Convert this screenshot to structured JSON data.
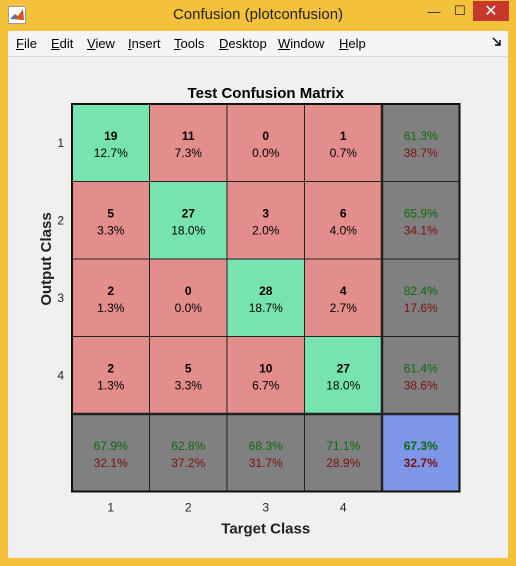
{
  "window": {
    "title": "Confusion (plotconfusion)",
    "minimize_glyph": "—",
    "maximize_glyph": "☐",
    "close_glyph": "✕",
    "app_icon": "matlab-icon"
  },
  "menu": [
    {
      "first": "F",
      "rest": "ile"
    },
    {
      "first": "E",
      "rest": "dit"
    },
    {
      "first": "V",
      "rest": "iew"
    },
    {
      "first": "I",
      "rest": "nsert"
    },
    {
      "first": "T",
      "rest": "ools"
    },
    {
      "first": "D",
      "rest": "esktop"
    },
    {
      "first": "W",
      "rest": "indow"
    },
    {
      "first": "H",
      "rest": "elp"
    }
  ],
  "colors": {
    "correct": "#77e4af",
    "incorrect": "#e38d8d",
    "summary": "#808080",
    "overall": "#7d96e7",
    "pct_good": "#0a6b0a",
    "pct_bad": "#7a1010"
  },
  "chart_data": {
    "type": "heatmap",
    "title": "Test Confusion Matrix",
    "xlabel": "Target Class",
    "ylabel": "Output Class",
    "x_ticks": [
      "1",
      "2",
      "3",
      "4"
    ],
    "y_ticks": [
      "1",
      "2",
      "3",
      "4"
    ],
    "matrix": [
      [
        {
          "count": "19",
          "pct": "12.7%"
        },
        {
          "count": "11",
          "pct": "7.3%"
        },
        {
          "count": "0",
          "pct": "0.0%"
        },
        {
          "count": "1",
          "pct": "0.7%"
        }
      ],
      [
        {
          "count": "5",
          "pct": "3.3%"
        },
        {
          "count": "27",
          "pct": "18.0%"
        },
        {
          "count": "3",
          "pct": "2.0%"
        },
        {
          "count": "6",
          "pct": "4.0%"
        }
      ],
      [
        {
          "count": "2",
          "pct": "1.3%"
        },
        {
          "count": "0",
          "pct": "0.0%"
        },
        {
          "count": "28",
          "pct": "18.7%"
        },
        {
          "count": "4",
          "pct": "2.7%"
        }
      ],
      [
        {
          "count": "2",
          "pct": "1.3%"
        },
        {
          "count": "5",
          "pct": "3.3%"
        },
        {
          "count": "10",
          "pct": "6.7%"
        },
        {
          "count": "27",
          "pct": "18.0%"
        }
      ]
    ],
    "row_summary": [
      {
        "good": "61.3%",
        "bad": "38.7%"
      },
      {
        "good": "65.9%",
        "bad": "34.1%"
      },
      {
        "good": "82.4%",
        "bad": "17.6%"
      },
      {
        "good": "61.4%",
        "bad": "38.6%"
      }
    ],
    "col_summary": [
      {
        "good": "67.9%",
        "bad": "32.1%"
      },
      {
        "good": "62.8%",
        "bad": "37.2%"
      },
      {
        "good": "68.3%",
        "bad": "31.7%"
      },
      {
        "good": "71.1%",
        "bad": "28.9%"
      }
    ],
    "overall": {
      "good": "67.3%",
      "bad": "32.7%"
    }
  }
}
